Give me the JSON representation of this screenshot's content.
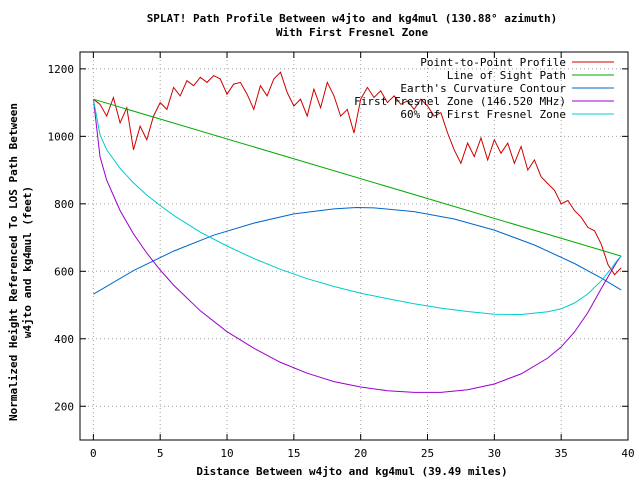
{
  "chart_data": {
    "type": "line",
    "title": "SPLAT! Path Profile Between w4jto and kg4mul (130.88° azimuth)",
    "subtitle": "With First Fresnel Zone",
    "xlabel": "Distance Between w4jto and kg4mul (39.49 miles)",
    "ylabel_line1": "Normalized Height Referenced To LOS Path Between",
    "ylabel_line2": "w4jto and kg4mul (feet)",
    "xlim": [
      -1,
      40
    ],
    "ylim": [
      100,
      1250
    ],
    "grid": true,
    "legend_position": "top-right",
    "x_ticks": [
      0,
      5,
      10,
      15,
      20,
      25,
      30,
      35,
      40
    ],
    "y_ticks": [
      200,
      400,
      600,
      800,
      1000,
      1200
    ],
    "series": [
      {
        "name": "Point-to-Point Profile",
        "color": "#cc0000",
        "points": [
          [
            0,
            1110
          ],
          [
            0.5,
            1095
          ],
          [
            1,
            1060
          ],
          [
            1.5,
            1115
          ],
          [
            2,
            1040
          ],
          [
            2.5,
            1085
          ],
          [
            3,
            960
          ],
          [
            3.5,
            1030
          ],
          [
            4,
            990
          ],
          [
            4.5,
            1060
          ],
          [
            5,
            1100
          ],
          [
            5.5,
            1080
          ],
          [
            6,
            1145
          ],
          [
            6.5,
            1120
          ],
          [
            7,
            1165
          ],
          [
            7.5,
            1150
          ],
          [
            8,
            1175
          ],
          [
            8.5,
            1160
          ],
          [
            9,
            1180
          ],
          [
            9.5,
            1170
          ],
          [
            10,
            1125
          ],
          [
            10.5,
            1155
          ],
          [
            11,
            1160
          ],
          [
            11.5,
            1125
          ],
          [
            12,
            1080
          ],
          [
            12.5,
            1150
          ],
          [
            13,
            1120
          ],
          [
            13.5,
            1170
          ],
          [
            14,
            1190
          ],
          [
            14.5,
            1130
          ],
          [
            15,
            1090
          ],
          [
            15.5,
            1110
          ],
          [
            16,
            1060
          ],
          [
            16.5,
            1140
          ],
          [
            17,
            1085
          ],
          [
            17.5,
            1160
          ],
          [
            18,
            1120
          ],
          [
            18.5,
            1060
          ],
          [
            19,
            1080
          ],
          [
            19.5,
            1010
          ],
          [
            20,
            1110
          ],
          [
            20.5,
            1145
          ],
          [
            21,
            1115
          ],
          [
            21.5,
            1135
          ],
          [
            22,
            1100
          ],
          [
            22.5,
            1120
          ],
          [
            23,
            1095
          ],
          [
            23.5,
            1105
          ],
          [
            24,
            1080
          ],
          [
            24.5,
            1110
          ],
          [
            25,
            1090
          ],
          [
            25.5,
            1060
          ],
          [
            26,
            1070
          ],
          [
            26.5,
            1010
          ],
          [
            27,
            960
          ],
          [
            27.5,
            920
          ],
          [
            28,
            980
          ],
          [
            28.5,
            940
          ],
          [
            29,
            995
          ],
          [
            29.5,
            930
          ],
          [
            30,
            990
          ],
          [
            30.5,
            950
          ],
          [
            31,
            980
          ],
          [
            31.5,
            920
          ],
          [
            32,
            970
          ],
          [
            32.5,
            900
          ],
          [
            33,
            930
          ],
          [
            33.5,
            880
          ],
          [
            34,
            860
          ],
          [
            34.5,
            840
          ],
          [
            35,
            800
          ],
          [
            35.5,
            810
          ],
          [
            36,
            780
          ],
          [
            36.5,
            760
          ],
          [
            37,
            730
          ],
          [
            37.5,
            720
          ],
          [
            38,
            680
          ],
          [
            38.5,
            620
          ],
          [
            39,
            590
          ],
          [
            39.49,
            610
          ]
        ]
      },
      {
        "name": "Line of Sight Path",
        "color": "#00aa00",
        "points": [
          [
            0,
            1110
          ],
          [
            39.49,
            645
          ]
        ]
      },
      {
        "name": "Earth's Curvature Contour",
        "color": "#0066cc",
        "points": [
          [
            0,
            532
          ],
          [
            3,
            602
          ],
          [
            6,
            660
          ],
          [
            9,
            707
          ],
          [
            12,
            743
          ],
          [
            15,
            770
          ],
          [
            18,
            785
          ],
          [
            19.7,
            789
          ],
          [
            21,
            788
          ],
          [
            24,
            777
          ],
          [
            27,
            755
          ],
          [
            30,
            722
          ],
          [
            33,
            678
          ],
          [
            36,
            623
          ],
          [
            38,
            580
          ],
          [
            39.49,
            545
          ]
        ]
      },
      {
        "name": "First Fresnel Zone (146.520 MHz)",
        "color": "#9900cc",
        "points": [
          [
            0,
            1110
          ],
          [
            0.5,
            940
          ],
          [
            1,
            870
          ],
          [
            2,
            780
          ],
          [
            3,
            711
          ],
          [
            4,
            654
          ],
          [
            5,
            604
          ],
          [
            6,
            559
          ],
          [
            8,
            483
          ],
          [
            10,
            421
          ],
          [
            12,
            372
          ],
          [
            14,
            330
          ],
          [
            16,
            298
          ],
          [
            18,
            273
          ],
          [
            20,
            257
          ],
          [
            22,
            246
          ],
          [
            24,
            241
          ],
          [
            26,
            241
          ],
          [
            28,
            249
          ],
          [
            30,
            266
          ],
          [
            32,
            296
          ],
          [
            34,
            343
          ],
          [
            35,
            376
          ],
          [
            36,
            420
          ],
          [
            37,
            478
          ],
          [
            38,
            549
          ],
          [
            38.8,
            604
          ],
          [
            39.2,
            630
          ],
          [
            39.49,
            645
          ]
        ]
      },
      {
        "name": "60% of First Fresnel Zone",
        "color": "#00cccc",
        "points": [
          [
            0,
            1110
          ],
          [
            0.5,
            1005
          ],
          [
            1,
            960
          ],
          [
            2,
            905
          ],
          [
            3,
            862
          ],
          [
            4,
            826
          ],
          [
            5,
            795
          ],
          [
            6,
            766
          ],
          [
            8,
            716
          ],
          [
            10,
            675
          ],
          [
            12,
            638
          ],
          [
            14,
            606
          ],
          [
            16,
            578
          ],
          [
            18,
            555
          ],
          [
            20,
            535
          ],
          [
            22,
            519
          ],
          [
            24,
            504
          ],
          [
            26,
            491
          ],
          [
            28,
            481
          ],
          [
            30,
            473
          ],
          [
            32,
            472
          ],
          [
            34,
            480
          ],
          [
            35,
            489
          ],
          [
            36,
            506
          ],
          [
            37,
            533
          ],
          [
            38,
            572
          ],
          [
            38.8,
            611
          ],
          [
            39.2,
            633
          ],
          [
            39.49,
            645
          ]
        ]
      }
    ]
  }
}
